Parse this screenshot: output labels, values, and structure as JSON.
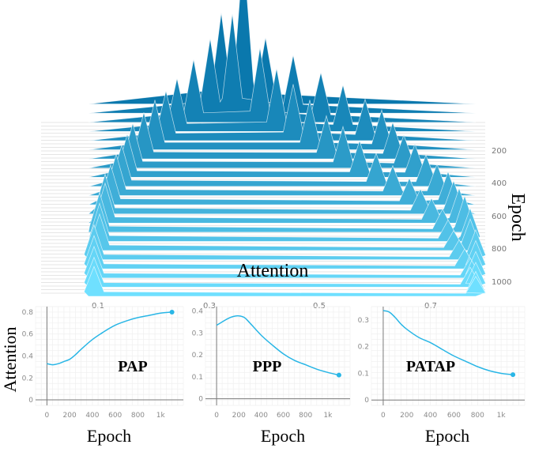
{
  "chart_data": [
    {
      "type": "area",
      "chart_id": "ridge",
      "xlabel": "Attention",
      "ylabel": "Epoch",
      "x_ticks": [
        "0.1",
        "0.3",
        "0.5",
        "0.7"
      ],
      "y_ticks": [
        "200",
        "400",
        "600",
        "800",
        "1000"
      ],
      "xlim": [
        0.1,
        0.8
      ],
      "ylim": [
        0,
        1100
      ],
      "colors": {
        "back": "#0a78ad",
        "front": "#6fe0ff"
      },
      "series": [
        {
          "epoch": 50,
          "peaks": [
            [
              0.38,
              0.92
            ],
            [
              0.34,
              0.55
            ],
            [
              0.42,
              0.4
            ]
          ]
        },
        {
          "epoch": 100,
          "peaks": [
            [
              0.32,
              0.45
            ],
            [
              0.36,
              0.6
            ],
            [
              0.47,
              0.35
            ]
          ]
        },
        {
          "epoch": 150,
          "peaks": [
            [
              0.29,
              0.38
            ],
            [
              0.41,
              0.45
            ],
            [
              0.52,
              0.3
            ]
          ]
        },
        {
          "epoch": 200,
          "peaks": [
            [
              0.26,
              0.32
            ],
            [
              0.44,
              0.38
            ],
            [
              0.56,
              0.28
            ]
          ]
        },
        {
          "epoch": 250,
          "peaks": [
            [
              0.24,
              0.3
            ],
            [
              0.47,
              0.34
            ],
            [
              0.6,
              0.25
            ]
          ]
        },
        {
          "epoch": 300,
          "peaks": [
            [
              0.22,
              0.3
            ],
            [
              0.5,
              0.3
            ],
            [
              0.63,
              0.24
            ]
          ]
        },
        {
          "epoch": 350,
          "peaks": [
            [
              0.2,
              0.28
            ],
            [
              0.53,
              0.26
            ],
            [
              0.65,
              0.22
            ]
          ]
        },
        {
          "epoch": 400,
          "peaks": [
            [
              0.18,
              0.27
            ],
            [
              0.56,
              0.25
            ],
            [
              0.67,
              0.2
            ]
          ]
        },
        {
          "epoch": 450,
          "peaks": [
            [
              0.17,
              0.26
            ],
            [
              0.59,
              0.22
            ],
            [
              0.69,
              0.2
            ]
          ]
        },
        {
          "epoch": 500,
          "peaks": [
            [
              0.16,
              0.25
            ],
            [
              0.62,
              0.2
            ],
            [
              0.71,
              0.19
            ]
          ]
        },
        {
          "epoch": 550,
          "peaks": [
            [
              0.15,
              0.25
            ],
            [
              0.65,
              0.18
            ],
            [
              0.73,
              0.19
            ]
          ]
        },
        {
          "epoch": 600,
          "peaks": [
            [
              0.14,
              0.24
            ],
            [
              0.68,
              0.16
            ],
            [
              0.75,
              0.2
            ]
          ]
        },
        {
          "epoch": 650,
          "peaks": [
            [
              0.13,
              0.24
            ],
            [
              0.7,
              0.15
            ],
            [
              0.76,
              0.2
            ]
          ]
        },
        {
          "epoch": 700,
          "peaks": [
            [
              0.13,
              0.24
            ],
            [
              0.72,
              0.15
            ],
            [
              0.77,
              0.21
            ]
          ]
        },
        {
          "epoch": 750,
          "peaks": [
            [
              0.12,
              0.24
            ],
            [
              0.74,
              0.14
            ],
            [
              0.78,
              0.22
            ]
          ]
        },
        {
          "epoch": 800,
          "peaks": [
            [
              0.12,
              0.23
            ],
            [
              0.75,
              0.13
            ],
            [
              0.79,
              0.2
            ]
          ]
        },
        {
          "epoch": 850,
          "peaks": [
            [
              0.12,
              0.22
            ],
            [
              0.76,
              0.12
            ],
            [
              0.79,
              0.19
            ]
          ]
        },
        {
          "epoch": 900,
          "peaks": [
            [
              0.11,
              0.21
            ],
            [
              0.77,
              0.12
            ],
            [
              0.8,
              0.18
            ]
          ]
        },
        {
          "epoch": 950,
          "peaks": [
            [
              0.11,
              0.2
            ],
            [
              0.78,
              0.12
            ],
            [
              0.8,
              0.17
            ]
          ]
        },
        {
          "epoch": 1000,
          "peaks": [
            [
              0.11,
              0.19
            ],
            [
              0.79,
              0.12
            ],
            [
              0.8,
              0.16
            ]
          ]
        },
        {
          "epoch": 1050,
          "peaks": [
            [
              0.11,
              0.18
            ],
            [
              0.79,
              0.12
            ],
            [
              0.8,
              0.15
            ]
          ]
        },
        {
          "epoch": 1100,
          "peaks": [
            [
              0.11,
              0.18
            ],
            [
              0.8,
              0.12
            ],
            [
              0.8,
              0.15
            ]
          ]
        }
      ]
    },
    {
      "type": "line",
      "chart_id": "pap",
      "title": "PAP",
      "ylabel": "Attention",
      "xlabel": "Epoch",
      "x_ticks": [
        "0",
        "200",
        "400",
        "600",
        "800",
        "1k"
      ],
      "y_ticks": [
        "0",
        "0.2",
        "0.4",
        "0.6",
        "0.8"
      ],
      "xlim": [
        -100,
        1200
      ],
      "ylim": [
        -0.05,
        0.85
      ],
      "line_color": "#29b6e6",
      "x": [
        0,
        50,
        100,
        150,
        200,
        250,
        300,
        400,
        500,
        600,
        700,
        800,
        900,
        1000,
        1100
      ],
      "y": [
        0.33,
        0.32,
        0.33,
        0.35,
        0.37,
        0.41,
        0.46,
        0.55,
        0.62,
        0.68,
        0.72,
        0.75,
        0.77,
        0.79,
        0.8
      ]
    },
    {
      "type": "line",
      "chart_id": "ppp",
      "title": "PPP",
      "xlabel": "Epoch",
      "x_ticks": [
        "0",
        "200",
        "400",
        "600",
        "800",
        "1k"
      ],
      "y_ticks": [
        "0",
        "0.1",
        "0.2",
        "0.3",
        "0.4"
      ],
      "xlim": [
        -100,
        1200
      ],
      "ylim": [
        -0.03,
        0.42
      ],
      "line_color": "#29b6e6",
      "x": [
        0,
        50,
        100,
        150,
        200,
        250,
        300,
        400,
        500,
        600,
        700,
        800,
        900,
        1000,
        1100
      ],
      "y": [
        0.335,
        0.35,
        0.365,
        0.375,
        0.378,
        0.37,
        0.345,
        0.29,
        0.245,
        0.205,
        0.175,
        0.155,
        0.135,
        0.12,
        0.108
      ]
    },
    {
      "type": "line",
      "chart_id": "patap",
      "title": "PATAP",
      "xlabel": "Epoch",
      "x_ticks": [
        "0",
        "200",
        "400",
        "600",
        "800",
        "1k"
      ],
      "y_ticks": [
        "0",
        "0.1",
        "0.2",
        "0.3"
      ],
      "xlim": [
        -100,
        1200
      ],
      "ylim": [
        -0.02,
        0.35
      ],
      "line_color": "#29b6e6",
      "x": [
        0,
        50,
        100,
        150,
        200,
        300,
        400,
        500,
        600,
        700,
        800,
        900,
        1000,
        1100
      ],
      "y": [
        0.335,
        0.33,
        0.31,
        0.285,
        0.265,
        0.235,
        0.215,
        0.19,
        0.165,
        0.145,
        0.125,
        0.11,
        0.1,
        0.095
      ]
    }
  ]
}
